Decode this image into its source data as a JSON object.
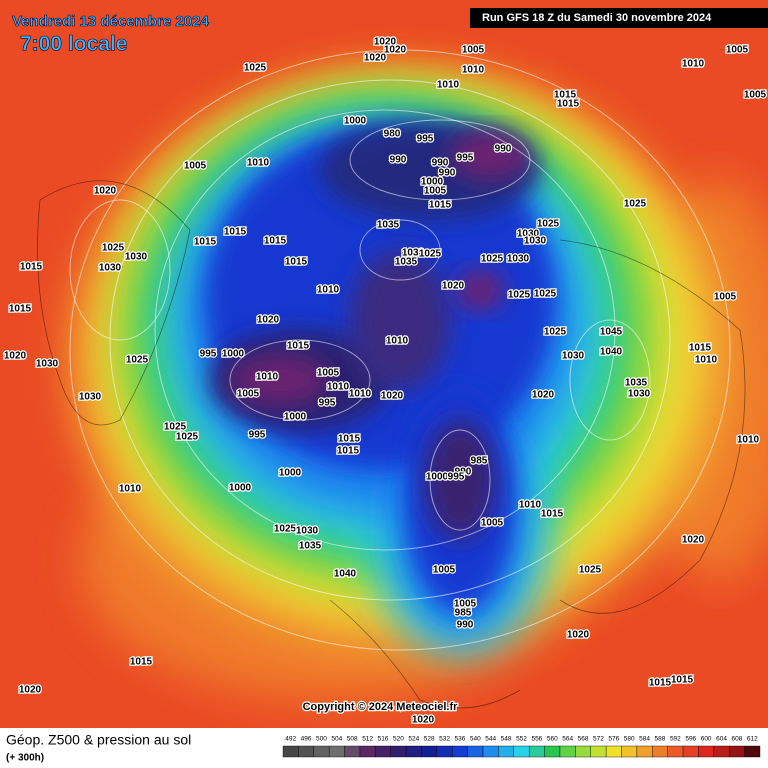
{
  "header": {
    "date": "Vendredi 13 décembre 2024",
    "time": "7:00 locale",
    "run": "Run GFS 18 Z du Samedi 30 novembre 2024"
  },
  "copyright": "Copyright © 2024 Meteociel.fr",
  "footer": {
    "title": "Géop. Z500 & pression au sol",
    "lead": "(+ 300h)"
  },
  "scale": {
    "labels": [
      492,
      496,
      500,
      504,
      508,
      512,
      516,
      520,
      524,
      528,
      532,
      536,
      540,
      544,
      548,
      552,
      556,
      560,
      564,
      568,
      572,
      576,
      580,
      584,
      588,
      592,
      596,
      600,
      604,
      608,
      612
    ]
  },
  "isobar_labels": [
    1020,
    1020,
    1020,
    1005,
    1005,
    1025,
    1010,
    1010,
    1010,
    1005,
    1015,
    1015,
    1000,
    980,
    995,
    990,
    995,
    990,
    990,
    990,
    1000,
    1005,
    1015,
    1005,
    1010,
    1020,
    1025,
    1035,
    1025,
    1030,
    1030,
    1015,
    1015,
    1015,
    1030,
    1025,
    1035,
    1025,
    1030,
    1025,
    1030,
    1030,
    1015,
    1015,
    1020,
    1025,
    1025,
    1010,
    1005,
    1015,
    1020,
    1025,
    1045,
    1010,
    1015,
    995,
    1000,
    1040,
    1030,
    1020,
    1015,
    1010,
    1025,
    1030,
    1005,
    1010,
    1035,
    1010,
    1005,
    1030,
    995,
    1010,
    1020,
    1030,
    1020,
    1000,
    1025,
    1025,
    995,
    1015,
    1015,
    985,
    990,
    1000,
    995,
    1000,
    1010,
    1000,
    1010,
    1015,
    1005,
    1025,
    1030,
    1035,
    1020,
    1005,
    1040,
    1025,
    1005,
    985,
    990,
    1020,
    1015,
    1015,
    1015,
    1010,
    1020,
    1020
  ]
}
